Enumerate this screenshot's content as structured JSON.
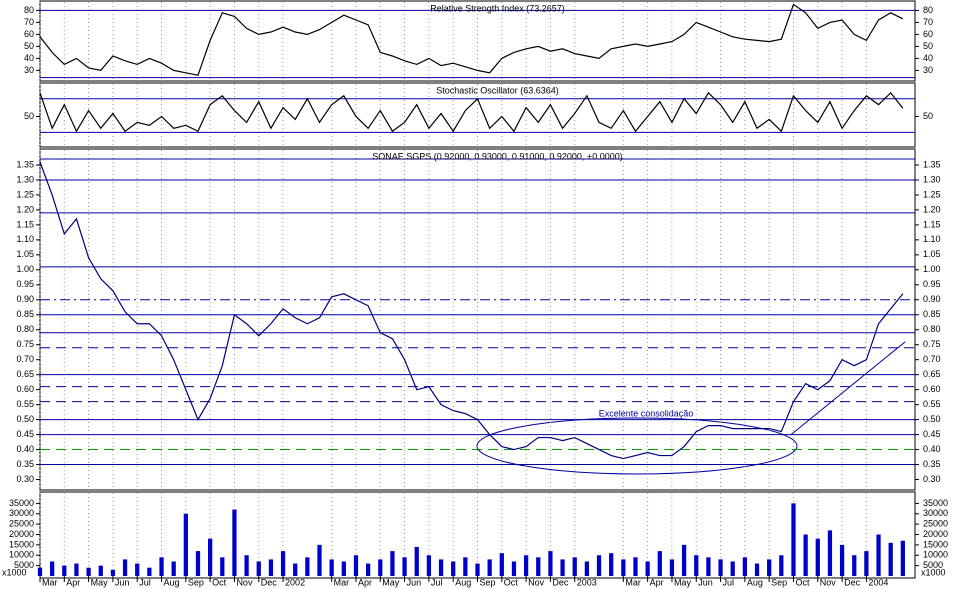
{
  "chart_data": [
    {
      "type": "line",
      "title": "Relative Strength Index (73.2657)",
      "color": "#000000",
      "x": [
        0,
        0.5,
        1,
        1.5,
        2,
        2.5,
        3,
        3.5,
        4,
        4.5,
        5,
        5.5,
        6,
        6.5,
        7,
        7.5,
        8,
        8.5,
        9,
        9.5,
        10,
        10.5,
        11,
        11.5,
        12,
        12.5,
        13,
        13.5,
        14,
        14.5,
        15,
        15.5,
        16,
        16.5,
        17,
        17.5,
        18,
        18.5,
        19,
        19.5,
        20,
        20.5,
        21,
        21.5,
        22,
        22.5,
        23,
        23.5,
        24,
        24.5,
        25,
        25.5,
        26,
        26.5,
        27,
        27.5,
        28,
        28.5,
        29,
        29.5,
        30,
        30.5,
        31,
        31.5,
        32,
        32.5,
        33,
        33.5,
        34,
        34.5,
        35,
        35.5
      ],
      "values": [
        58,
        45,
        35,
        40,
        32,
        30,
        42,
        38,
        35,
        40,
        36,
        30,
        28,
        26,
        55,
        78,
        75,
        65,
        60,
        62,
        66,
        62,
        60,
        64,
        70,
        76,
        72,
        68,
        45,
        42,
        38,
        35,
        40,
        34,
        36,
        33,
        30,
        28,
        40,
        45,
        48,
        50,
        46,
        48,
        44,
        42,
        40,
        48,
        50,
        52,
        50,
        52,
        54,
        60,
        70,
        66,
        62,
        58,
        56,
        55,
        54,
        56,
        85,
        78,
        65,
        70,
        72,
        60,
        55,
        72,
        78,
        73
      ],
      "xlim": [
        0,
        36
      ],
      "ylim": [
        22,
        87
      ],
      "yticks": [
        30,
        40,
        50,
        60,
        70,
        80
      ],
      "hlines": [
        {
          "value": 80,
          "style": "solid",
          "color": "#0000a0"
        },
        {
          "value": 24,
          "style": "solid",
          "color": "#0000a0"
        }
      ]
    },
    {
      "type": "line",
      "title": "Stochastic Oscillator (63.6364)",
      "color": "#000000",
      "x": [
        0,
        0.5,
        1,
        1.5,
        2,
        2.5,
        3,
        3.5,
        4,
        4.5,
        5,
        5.5,
        6,
        6.5,
        7,
        7.5,
        8,
        8.5,
        9,
        9.5,
        10,
        10.5,
        11,
        11.5,
        12,
        12.5,
        13,
        13.5,
        14,
        14.5,
        15,
        15.5,
        16,
        16.5,
        17,
        17.5,
        18,
        18.5,
        19,
        19.5,
        20,
        20.5,
        21,
        21.5,
        22,
        22.5,
        23,
        23.5,
        24,
        24.5,
        25,
        25.5,
        26,
        26.5,
        27,
        27.5,
        28,
        28.5,
        29,
        29.5,
        30,
        30.5,
        31,
        31.5,
        32,
        32.5,
        33,
        33.5,
        34,
        34.5,
        35,
        35.5
      ],
      "values": [
        90,
        30,
        70,
        25,
        60,
        30,
        55,
        25,
        40,
        35,
        50,
        30,
        35,
        25,
        70,
        85,
        60,
        40,
        75,
        30,
        65,
        45,
        80,
        40,
        70,
        85,
        50,
        30,
        60,
        25,
        40,
        70,
        30,
        55,
        25,
        60,
        80,
        30,
        50,
        25,
        65,
        40,
        70,
        30,
        55,
        85,
        40,
        30,
        60,
        25,
        50,
        75,
        40,
        80,
        55,
        90,
        70,
        40,
        75,
        30,
        45,
        25,
        85,
        60,
        40,
        75,
        30,
        60,
        85,
        70,
        90,
        64
      ],
      "xlim": [
        0,
        36
      ],
      "ylim": [
        0,
        105
      ],
      "yticks": [
        50
      ],
      "hlines": [
        {
          "value": 80,
          "style": "solid",
          "color": "#0000a0"
        },
        {
          "value": 23,
          "style": "solid",
          "color": "#0000a0"
        }
      ]
    },
    {
      "type": "line",
      "title": "SONAE SGPS (0.92000, 0.93000, 0.91000, 0.92000, +0.0000)",
      "color": "#000080",
      "x": [
        0,
        0.5,
        1,
        1.5,
        2,
        2.5,
        3,
        3.5,
        4,
        4.5,
        5,
        5.5,
        6,
        6.5,
        7,
        7.5,
        8,
        8.5,
        9,
        9.5,
        10,
        10.5,
        11,
        11.5,
        12,
        12.5,
        13,
        13.5,
        14,
        14.5,
        15,
        15.5,
        16,
        16.5,
        17,
        17.5,
        18,
        18.5,
        19,
        19.5,
        20,
        20.5,
        21,
        21.5,
        22,
        22.5,
        23,
        23.5,
        24,
        24.5,
        25,
        25.5,
        26,
        26.5,
        27,
        27.5,
        28,
        28.5,
        29,
        29.5,
        30,
        30.5,
        31,
        31.5,
        32,
        32.5,
        33,
        33.5,
        34,
        34.5,
        35,
        35.5
      ],
      "values": [
        1.36,
        1.25,
        1.12,
        1.17,
        1.04,
        0.97,
        0.93,
        0.86,
        0.82,
        0.82,
        0.78,
        0.7,
        0.6,
        0.5,
        0.57,
        0.68,
        0.85,
        0.82,
        0.78,
        0.82,
        0.87,
        0.84,
        0.82,
        0.84,
        0.91,
        0.92,
        0.9,
        0.88,
        0.79,
        0.77,
        0.7,
        0.6,
        0.61,
        0.55,
        0.53,
        0.52,
        0.5,
        0.45,
        0.41,
        0.4,
        0.41,
        0.44,
        0.44,
        0.43,
        0.44,
        0.42,
        0.4,
        0.38,
        0.37,
        0.38,
        0.39,
        0.38,
        0.38,
        0.41,
        0.46,
        0.48,
        0.48,
        0.47,
        0.47,
        0.47,
        0.47,
        0.46,
        0.56,
        0.62,
        0.6,
        0.63,
        0.7,
        0.68,
        0.7,
        0.82,
        0.87,
        0.92
      ],
      "xlim": [
        0,
        36
      ],
      "ylim": [
        0.265,
        1.4
      ],
      "yticks": [
        {
          "value": 0.3,
          "label": "0.30"
        },
        {
          "value": 0.35,
          "label": "0.35"
        },
        {
          "value": 0.4,
          "label": "0.40"
        },
        {
          "value": 0.45,
          "label": "0.45"
        },
        {
          "value": 0.5,
          "label": "0.50"
        },
        {
          "value": 0.55,
          "label": "0.55"
        },
        {
          "value": 0.6,
          "label": "0.60"
        },
        {
          "value": 0.65,
          "label": "0.65"
        },
        {
          "value": 0.7,
          "label": "0.70"
        },
        {
          "value": 0.75,
          "label": "0.75"
        },
        {
          "value": 0.8,
          "label": "0.80"
        },
        {
          "value": 0.85,
          "label": "0.85"
        },
        {
          "value": 0.9,
          "label": "0.90"
        },
        {
          "value": 0.95,
          "label": "0.95"
        },
        {
          "value": 1.0,
          "label": "1.00"
        },
        {
          "value": 1.05,
          "label": "1.05"
        },
        {
          "value": 1.1,
          "label": "1.10"
        },
        {
          "value": 1.15,
          "label": "1.15"
        },
        {
          "value": 1.2,
          "label": "1.20"
        },
        {
          "value": 1.25,
          "label": "1.25"
        },
        {
          "value": 1.3,
          "label": "1.30"
        },
        {
          "value": 1.35,
          "label": "1.35"
        }
      ],
      "hlines": [
        {
          "value": 1.37,
          "style": "solid",
          "color": "#0000a0"
        },
        {
          "value": 1.3,
          "style": "solid",
          "color": "#0000a0"
        },
        {
          "value": 1.19,
          "style": "solid",
          "color": "#0000a0"
        },
        {
          "value": 1.01,
          "style": "solid",
          "color": "#0000a0"
        },
        {
          "value": 0.9,
          "style": "dashdot",
          "color": "#0000a0"
        },
        {
          "value": 0.85,
          "style": "solid",
          "color": "#0000a0"
        },
        {
          "value": 0.79,
          "style": "solid",
          "color": "#0000a0"
        },
        {
          "value": 0.74,
          "style": "dashed",
          "color": "#0000a0"
        },
        {
          "value": 0.65,
          "style": "solid",
          "color": "#0000a0"
        },
        {
          "value": 0.61,
          "style": "dashed",
          "color": "#0000a0"
        },
        {
          "value": 0.56,
          "style": "dashed",
          "color": "#0000a0"
        },
        {
          "value": 0.5,
          "style": "solid",
          "color": "#0000a0"
        },
        {
          "value": 0.45,
          "style": "solid",
          "color": "#0000a0"
        },
        {
          "value": 0.4,
          "style": "dashed",
          "color": "#00a000"
        },
        {
          "value": 0.35,
          "style": "solid",
          "color": "#0000a0"
        }
      ],
      "trendline": {
        "x": [
          30.9,
          35.6
        ],
        "y": [
          0.45,
          0.76
        ]
      },
      "annotation": "Excelente consolidação"
    },
    {
      "type": "bar",
      "color": "#0000cc",
      "yaxis_label": "x1000",
      "x": [
        0,
        0.5,
        1,
        1.5,
        2,
        2.5,
        3,
        3.5,
        4,
        4.5,
        5,
        5.5,
        6,
        6.5,
        7,
        7.5,
        8,
        8.5,
        9,
        9.5,
        10,
        10.5,
        11,
        11.5,
        12,
        12.5,
        13,
        13.5,
        14,
        14.5,
        15,
        15.5,
        16,
        16.5,
        17,
        17.5,
        18,
        18.5,
        19,
        19.5,
        20,
        20.5,
        21,
        21.5,
        22,
        22.5,
        23,
        23.5,
        24,
        24.5,
        25,
        25.5,
        26,
        26.5,
        27,
        27.5,
        28,
        28.5,
        29,
        29.5,
        30,
        30.5,
        31,
        31.5,
        32,
        32.5,
        33,
        33.5,
        34,
        34.5,
        35,
        35.5
      ],
      "values": [
        4000,
        7000,
        5000,
        6000,
        4000,
        5000,
        3000,
        8000,
        6000,
        4000,
        9000,
        7000,
        30000,
        12000,
        18000,
        9000,
        32000,
        10000,
        7000,
        8000,
        12000,
        6000,
        9000,
        15000,
        8000,
        7000,
        10000,
        6000,
        8000,
        12000,
        9000,
        14000,
        10000,
        8000,
        7000,
        9000,
        6000,
        8000,
        11000,
        7000,
        10000,
        9000,
        12000,
        8000,
        9000,
        7000,
        10000,
        11000,
        8000,
        9000,
        7000,
        12000,
        8000,
        15000,
        10000,
        9000,
        8000,
        7000,
        9000,
        6000,
        8000,
        10000,
        35000,
        20000,
        18000,
        22000,
        15000,
        10000,
        12000,
        20000,
        16000,
        17000
      ],
      "xlim": [
        0,
        36
      ],
      "ylim": [
        0,
        40000
      ],
      "yticks": [
        5000,
        10000,
        15000,
        20000,
        25000,
        30000,
        35000
      ],
      "xticks": [
        {
          "value": 0,
          "label": "Mar"
        },
        {
          "value": 1,
          "label": "Apr"
        },
        {
          "value": 2,
          "label": "May"
        },
        {
          "value": 3,
          "label": "Jun"
        },
        {
          "value": 4,
          "label": "Jul"
        },
        {
          "value": 5,
          "label": "Aug"
        },
        {
          "value": 6,
          "label": "Sep"
        },
        {
          "value": 7,
          "label": "Oct"
        },
        {
          "value": 8,
          "label": "Nov"
        },
        {
          "value": 9,
          "label": "Dec"
        },
        {
          "value": 10,
          "label": "2002"
        },
        {
          "value": 12,
          "label": "Mar"
        },
        {
          "value": 13,
          "label": "Apr"
        },
        {
          "value": 14,
          "label": "May"
        },
        {
          "value": 15,
          "label": "Jun"
        },
        {
          "value": 16,
          "label": "Jul"
        },
        {
          "value": 17,
          "label": "Aug"
        },
        {
          "value": 18,
          "label": "Sep"
        },
        {
          "value": 19,
          "label": "Oct"
        },
        {
          "value": 20,
          "label": "Nov"
        },
        {
          "value": 21,
          "label": "Dec"
        },
        {
          "value": 22,
          "label": "2003"
        },
        {
          "value": 24,
          "label": "Mar"
        },
        {
          "value": 25,
          "label": "Apr"
        },
        {
          "value": 26,
          "label": "May"
        },
        {
          "value": 27,
          "label": "Jun"
        },
        {
          "value": 28,
          "label": "Jul"
        },
        {
          "value": 29,
          "label": "Aug"
        },
        {
          "value": 30,
          "label": "Sep"
        },
        {
          "value": 31,
          "label": "Oct"
        },
        {
          "value": 32,
          "label": "Nov"
        },
        {
          "value": 33,
          "label": "Dec"
        },
        {
          "value": 34,
          "label": "2004"
        }
      ]
    }
  ]
}
